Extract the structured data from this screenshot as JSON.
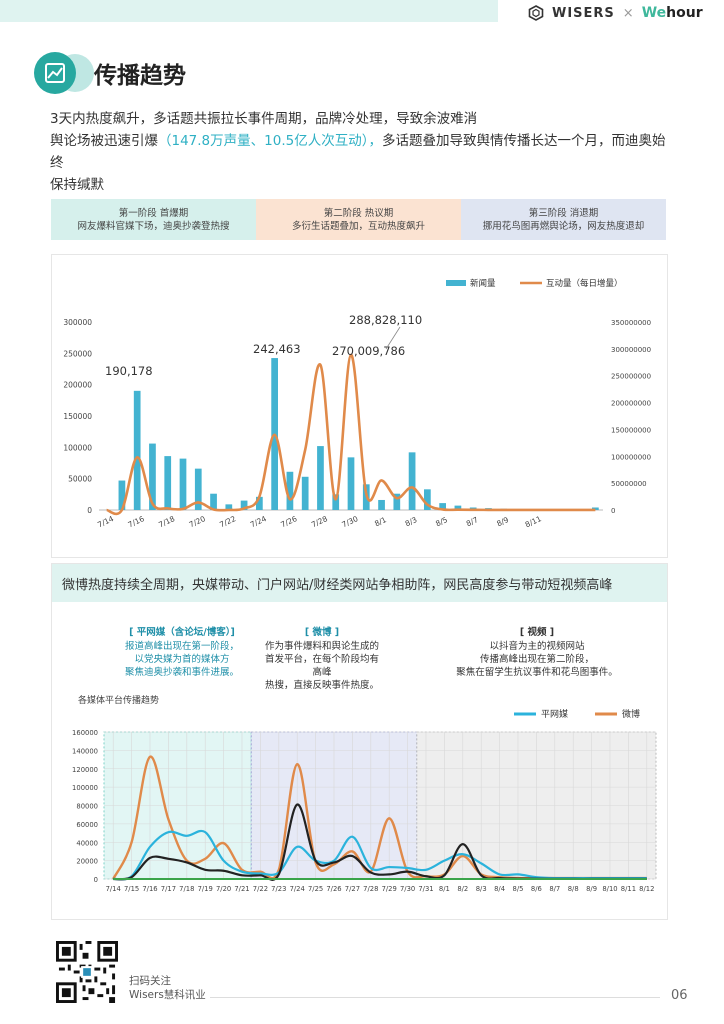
{
  "header": {
    "brand1": "WISERS",
    "cross": "×",
    "brand2_a": "We",
    "brand2_b": "hour"
  },
  "title": "传播趋势",
  "lead": {
    "line1": "3天内热度飙升，多话题共振拉长事件周期，品牌冷处理，导致余波难消",
    "line2a": "舆论场被迅速引爆",
    "line2b": "（147.8万声量、10.5亿人次互动），",
    "line2c": "多话题叠加导致舆情传播长达一个月，而迪奥始终",
    "line3": "保持缄默"
  },
  "phases": [
    {
      "title": "第一阶段 首爆期",
      "desc": "网友爆料官媒下场，迪奥抄袭登热搜"
    },
    {
      "title": "第二阶段 热议期",
      "desc": "多衍生话题叠加，互动热度飙升"
    },
    {
      "title": "第三阶段 消退期",
      "desc": "挪用花鸟图再燃舆论场，网友热度退却"
    }
  ],
  "chart_data": [
    {
      "type": "bar",
      "legend": [
        "新闻量",
        "互动量（每日增量）"
      ],
      "x_ticks": [
        "7/14",
        "7/16",
        "7/18",
        "7/20",
        "7/22",
        "7/24",
        "7/26",
        "7/28",
        "7/30",
        "8/1",
        "8/3",
        "8/5",
        "8/7",
        "8/9",
        "8/11"
      ],
      "left_ticks": [
        "0",
        "50000",
        "100000",
        "150000",
        "200000",
        "250000",
        "300000"
      ],
      "right_ticks": [
        "0",
        "50000000",
        "100000000",
        "150000000",
        "200000000",
        "250000000",
        "300000000",
        "350000000"
      ],
      "ylim_left": [
        0,
        300000
      ],
      "ylim_right": [
        0,
        350000000
      ],
      "bars": [
        0,
        47000,
        190178,
        106000,
        86000,
        82000,
        66000,
        26000,
        9000,
        15000,
        21000,
        242463,
        61000,
        53000,
        102000,
        25000,
        84000,
        41000,
        16000,
        26000,
        92000,
        33000,
        11000,
        7000,
        4000,
        3000,
        2000,
        1500,
        1000,
        1000,
        1000,
        600,
        4000
      ],
      "line": [
        0,
        0,
        98000000,
        12000000,
        3000000,
        2000000,
        14000000,
        1000000,
        0,
        3000000,
        25000000,
        140000000,
        20000000,
        112000000,
        270009786,
        20000000,
        288828110,
        30000000,
        55000000,
        22000000,
        42000000,
        10000000,
        1000000,
        500000,
        300000,
        200000,
        100000,
        100000,
        100000,
        100000,
        100000,
        100000,
        100000
      ],
      "annotations": [
        "190,178",
        "242,463",
        "270,009,786",
        "288,828,110"
      ]
    },
    {
      "type": "line",
      "title": "各媒体平台传播趋势",
      "legend": [
        "平网媒",
        "微博"
      ],
      "categories": [
        "7/14",
        "7/15",
        "7/16",
        "7/17",
        "7/18",
        "7/19",
        "7/20",
        "7/21",
        "7/22",
        "7/23",
        "7/24",
        "7/25",
        "7/26",
        "7/27",
        "7/28",
        "7/29",
        "7/30",
        "7/31",
        "8/1",
        "8/2",
        "8/3",
        "8/4",
        "8/5",
        "8/6",
        "8/7",
        "8/8",
        "8/9",
        "8/10",
        "8/11",
        "8/12"
      ],
      "y_ticks": [
        "0",
        "20000",
        "40000",
        "60000",
        "80000",
        "100000",
        "120000",
        "140000",
        "160000"
      ],
      "ylim": [
        0,
        160000
      ],
      "series": [
        {
          "name": "平网媒",
          "values": [
            0,
            3000,
            35000,
            51000,
            47000,
            51000,
            20000,
            8000,
            6000,
            7000,
            35000,
            20000,
            20000,
            46000,
            12000,
            13000,
            12000,
            10000,
            20000,
            27000,
            17000,
            5000,
            5000,
            2000,
            1000,
            1000,
            1000,
            1000,
            1000,
            1000
          ]
        },
        {
          "name": "微博",
          "values": [
            0,
            40000,
            133000,
            65000,
            20000,
            22000,
            39000,
            10000,
            8000,
            10000,
            125000,
            18000,
            16000,
            30000,
            8000,
            66000,
            8000,
            3000,
            5000,
            25000,
            5000,
            2000,
            1000,
            1000,
            1000,
            1000,
            1000,
            1000,
            1000,
            1000
          ]
        },
        {
          "name": "",
          "values": [
            0,
            2000,
            23000,
            22000,
            18000,
            10000,
            9000,
            4000,
            4000,
            5000,
            81000,
            20000,
            18000,
            25000,
            7000,
            5000,
            8000,
            3000,
            4000,
            38000,
            4000,
            1000,
            500,
            300,
            200,
            100,
            100,
            100,
            100,
            100
          ]
        },
        {
          "name": "",
          "values": [
            0,
            0,
            0,
            0,
            0,
            0,
            0,
            0,
            0,
            0,
            0,
            0,
            0,
            0,
            0,
            0,
            0,
            0,
            0,
            0,
            0,
            0,
            0,
            0,
            0,
            0,
            0,
            0,
            0,
            0
          ]
        }
      ]
    }
  ],
  "section2": {
    "heading": "微博热度持续全周期，央媒带动、门户网站/财经类网站争相助阵，网民高度参与带动短视频高峰",
    "cols": [
      {
        "title": "[ 平网媒（含论坛/博客）]",
        "lines": [
          "报道高峰出现在第一阶段，",
          "以党央媒为首的媒体方",
          "聚焦迪奥抄袭和事件进展。"
        ]
      },
      {
        "title": "[ 微博 ]",
        "lines": [
          "作为事件爆料和舆论生成的",
          "首发平台，在每个阶段均有高峰",
          "热搜，直接反映事件热度。"
        ]
      },
      {
        "title": "[ 视频 ]",
        "lines": [
          "以抖音为主的视频网站",
          "传播高峰出现在第二阶段，",
          "聚焦在留学生抗议事件和花鸟图事件。"
        ]
      }
    ]
  },
  "footer": {
    "follow1": "扫码关注",
    "follow2": "Wisers慧科讯业",
    "page": "06"
  },
  "colors": {
    "teal": "#27a8a0",
    "bar": "#43b3d1",
    "orange": "#e08a4a",
    "blue": "#2bb3dc",
    "black": "#222222",
    "green": "#3aa44a"
  }
}
